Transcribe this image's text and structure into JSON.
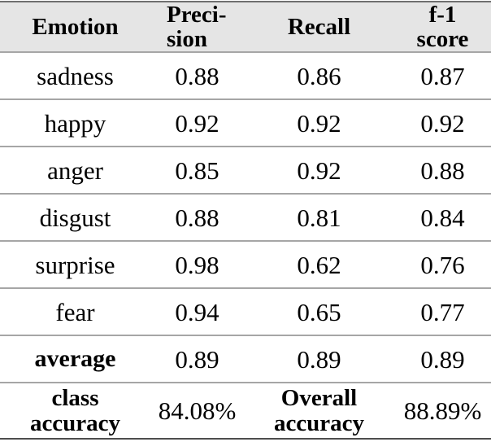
{
  "table": {
    "title_semantic": "emotion-classification-results",
    "columns": [
      {
        "id": "emotion",
        "label": "Emotion"
      },
      {
        "id": "precision",
        "label": "Preci-\nsion"
      },
      {
        "id": "recall",
        "label": "Recall"
      },
      {
        "id": "f1",
        "label": "f-1\nscore"
      }
    ],
    "rows": [
      {
        "emotion": "sadness",
        "precision": "0.88",
        "recall": "0.86",
        "f1": "0.87"
      },
      {
        "emotion": "happy",
        "precision": "0.92",
        "recall": "0.92",
        "f1": "0.92"
      },
      {
        "emotion": "anger",
        "precision": "0.85",
        "recall": "0.92",
        "f1": "0.88"
      },
      {
        "emotion": "disgust",
        "precision": "0.88",
        "recall": "0.81",
        "f1": "0.84"
      },
      {
        "emotion": "surprise",
        "precision": "0.98",
        "recall": "0.62",
        "f1": "0.76"
      },
      {
        "emotion": "fear",
        "precision": "0.94",
        "recall": "0.65",
        "f1": "0.77"
      },
      {
        "emotion": "average",
        "precision": "0.89",
        "recall": "0.89",
        "f1": "0.89"
      }
    ],
    "summary": {
      "class_label": "class\naccuracy",
      "class_accuracy": "84.08%",
      "overall_label": "Overall\naccuracy",
      "overall_accuracy": "88.89%"
    },
    "colors": {
      "header_background": "#e5e5e5",
      "inner_rule": "#a6a6a6",
      "top_rule": "#6f6f6f",
      "bottom_rule": "#4d4d4d",
      "text": "#000000",
      "page_background": "#ffffff"
    }
  }
}
